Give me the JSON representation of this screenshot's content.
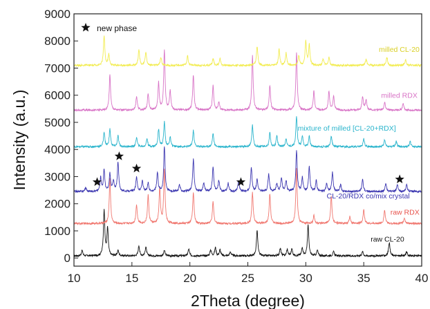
{
  "chart_data": {
    "type": "line",
    "title": "",
    "xlabel": "2Theta (degree)",
    "ylabel": "Intensity (a.u.)",
    "xlim": [
      10,
      40
    ],
    "ylim": [
      -300,
      9000
    ],
    "xticks": [
      10,
      15,
      20,
      25,
      30,
      35,
      40
    ],
    "yticks": [
      0,
      1000,
      2000,
      3000,
      4000,
      5000,
      6000,
      7000,
      8000,
      9000
    ],
    "grid": false,
    "legend": {
      "symbol": "star",
      "label": "new phase",
      "position": "top-left"
    },
    "series": [
      {
        "name": "raw CL-20",
        "color": "#111111",
        "baseline": 80,
        "peaks": [
          [
            10.7,
            200
          ],
          [
            12.6,
            1700
          ],
          [
            12.9,
            1000
          ],
          [
            13.8,
            200
          ],
          [
            15.6,
            380
          ],
          [
            16.2,
            330
          ],
          [
            17.8,
            200
          ],
          [
            19.9,
            250
          ],
          [
            21.8,
            220
          ],
          [
            22.2,
            300
          ],
          [
            22.6,
            220
          ],
          [
            23.5,
            150
          ],
          [
            25.8,
            950
          ],
          [
            27.8,
            280
          ],
          [
            28.4,
            230
          ],
          [
            28.8,
            250
          ],
          [
            29.7,
            300
          ],
          [
            30.2,
            1150
          ],
          [
            31.0,
            200
          ],
          [
            32.4,
            150
          ],
          [
            34.9,
            150
          ],
          [
            37.2,
            500
          ],
          [
            38.7,
            150
          ]
        ]
      },
      {
        "name": "raw RDX",
        "color": "#f0766e",
        "baseline": 1270,
        "peaks": [
          [
            13.1,
            1650
          ],
          [
            15.4,
            700
          ],
          [
            16.4,
            1050
          ],
          [
            17.4,
            1300
          ],
          [
            17.8,
            1950
          ],
          [
            20.3,
            1150
          ],
          [
            22.0,
            800
          ],
          [
            25.4,
            1150
          ],
          [
            26.9,
            1100
          ],
          [
            29.2,
            2050
          ],
          [
            30.7,
            300
          ],
          [
            32.2,
            1000
          ],
          [
            33.8,
            250
          ],
          [
            35.0,
            500
          ],
          [
            36.8,
            500
          ],
          [
            38.5,
            200
          ]
        ]
      },
      {
        "name": "CL-20/RDX co/mix crystal",
        "color": "#3b36b0",
        "baseline": 2450,
        "peaks": [
          [
            11.0,
            150
          ],
          [
            12.3,
            500
          ],
          [
            12.6,
            800
          ],
          [
            13.1,
            650
          ],
          [
            13.4,
            400
          ],
          [
            13.8,
            1100
          ],
          [
            15.4,
            550
          ],
          [
            15.9,
            400
          ],
          [
            16.4,
            300
          ],
          [
            17.2,
            700
          ],
          [
            17.8,
            1650
          ],
          [
            19.1,
            250
          ],
          [
            20.3,
            1200
          ],
          [
            21.2,
            300
          ],
          [
            22.0,
            900
          ],
          [
            22.5,
            400
          ],
          [
            23.3,
            300
          ],
          [
            24.2,
            400
          ],
          [
            25.3,
            900
          ],
          [
            25.8,
            450
          ],
          [
            26.8,
            650
          ],
          [
            27.5,
            300
          ],
          [
            27.9,
            500
          ],
          [
            28.3,
            400
          ],
          [
            29.2,
            1500
          ],
          [
            29.7,
            500
          ],
          [
            30.3,
            900
          ],
          [
            30.9,
            400
          ],
          [
            31.8,
            300
          ],
          [
            32.3,
            700
          ],
          [
            33.0,
            250
          ],
          [
            34.9,
            450
          ],
          [
            36.9,
            300
          ],
          [
            37.9,
            250
          ],
          [
            38.7,
            250
          ]
        ]
      },
      {
        "name": "mixture of milled [CL-20+RDX]",
        "color": "#29b4cc",
        "baseline": 4100,
        "peaks": [
          [
            12.6,
            550
          ],
          [
            13.1,
            650
          ],
          [
            13.8,
            400
          ],
          [
            15.4,
            350
          ],
          [
            16.3,
            300
          ],
          [
            17.3,
            650
          ],
          [
            17.8,
            900
          ],
          [
            18.3,
            350
          ],
          [
            20.3,
            600
          ],
          [
            22.0,
            500
          ],
          [
            25.4,
            800
          ],
          [
            26.9,
            500
          ],
          [
            27.5,
            400
          ],
          [
            28.3,
            300
          ],
          [
            29.2,
            1100
          ],
          [
            29.7,
            400
          ],
          [
            30.3,
            400
          ],
          [
            32.2,
            400
          ],
          [
            35.0,
            300
          ],
          [
            36.8,
            250
          ],
          [
            37.8,
            200
          ],
          [
            39.0,
            200
          ]
        ]
      },
      {
        "name": "milled RDX",
        "color": "#d873c6",
        "baseline": 5450,
        "peaks": [
          [
            13.1,
            1300
          ],
          [
            15.4,
            500
          ],
          [
            16.4,
            600
          ],
          [
            17.3,
            1000
          ],
          [
            17.8,
            2200
          ],
          [
            18.3,
            700
          ],
          [
            20.3,
            1300
          ],
          [
            22.0,
            900
          ],
          [
            22.5,
            300
          ],
          [
            25.4,
            2000
          ],
          [
            26.9,
            900
          ],
          [
            29.2,
            2100
          ],
          [
            30.7,
            700
          ],
          [
            32.0,
            700
          ],
          [
            32.4,
            500
          ],
          [
            34.9,
            500
          ],
          [
            35.2,
            400
          ],
          [
            36.8,
            300
          ],
          [
            38.4,
            250
          ]
        ]
      },
      {
        "name": "milled CL-20",
        "color": "#f2ec50",
        "baseline": 7100,
        "peaks": [
          [
            12.6,
            1100
          ],
          [
            13.0,
            400
          ],
          [
            15.6,
            600
          ],
          [
            16.2,
            500
          ],
          [
            17.5,
            300
          ],
          [
            19.8,
            350
          ],
          [
            22.0,
            250
          ],
          [
            22.6,
            250
          ],
          [
            25.8,
            700
          ],
          [
            27.7,
            600
          ],
          [
            28.3,
            450
          ],
          [
            29.4,
            350
          ],
          [
            30.0,
            900
          ],
          [
            30.3,
            750
          ],
          [
            31.5,
            250
          ],
          [
            32.0,
            300
          ],
          [
            35.2,
            250
          ],
          [
            37.0,
            300
          ],
          [
            38.6,
            200
          ]
        ]
      }
    ],
    "series_labels": [
      {
        "text": "raw CL-20",
        "color": "#111111",
        "x": 35.6,
        "y": 600
      },
      {
        "text": "raw RDX",
        "color": "#e8534c",
        "x": 37.3,
        "y": 1600
      },
      {
        "text": "CL-20/RDX co/mix crystal",
        "color": "#3b36b0",
        "x": 31.8,
        "y": 2200
      },
      {
        "text": "mixture of milled [CL-20+RDX]",
        "color": "#29b4cc",
        "x": 29.3,
        "y": 4700
      },
      {
        "text": "milled RDX",
        "color": "#d873c6",
        "x": 36.5,
        "y": 5900
      },
      {
        "text": "milled CL-20",
        "color": "#d9cf24",
        "x": 36.3,
        "y": 7600
      }
    ],
    "annotations": [
      {
        "symbol": "star",
        "x": 12.0,
        "y": 2800
      },
      {
        "symbol": "star",
        "x": 13.9,
        "y": 3750
      },
      {
        "symbol": "star",
        "x": 15.4,
        "y": 3300
      },
      {
        "symbol": "star",
        "x": 24.4,
        "y": 2800
      },
      {
        "symbol": "star",
        "x": 38.1,
        "y": 2900
      }
    ]
  }
}
